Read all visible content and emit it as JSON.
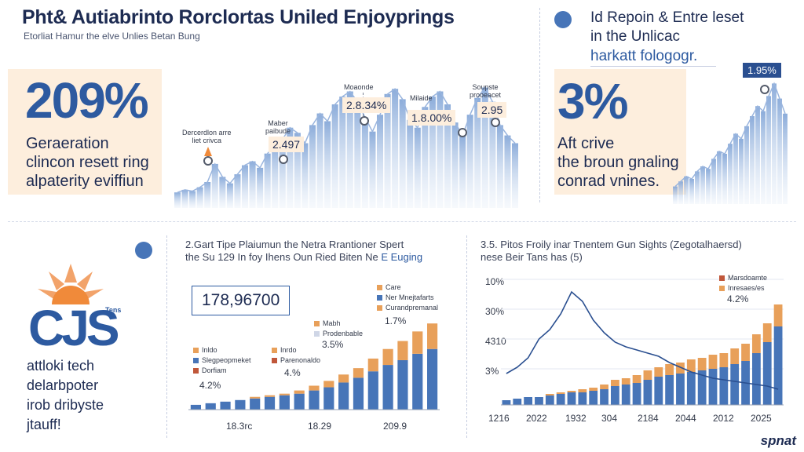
{
  "header": {
    "title": "Pht& Autiabrinto Rorclortas Uniled Enjoyprings",
    "subtitle": "Etorliat Hamur the elve Unlies Betan Bung"
  },
  "left_panel": {
    "percent": "209%",
    "lines": [
      "Geraeration",
      "clincon resett ring",
      "alpaterity eviffiun"
    ]
  },
  "right_panel": {
    "head_lines": [
      "Id Repoin & Entre leset",
      "in the Unlicac"
    ],
    "sub": "harkatt fologogr.",
    "percent": "3%",
    "lines": [
      "Aft crive",
      "the broun gnaling",
      "conrad vnines."
    ],
    "badge": "1.95%"
  },
  "top_callouts": [
    {
      "label": "Dercerdlon arre\nliet crivca",
      "value": ""
    },
    {
      "label": "Maber\npaibude",
      "value": "2.497"
    },
    {
      "label": "Moaonde\n",
      "value": "2.8.34%"
    },
    {
      "label": "Milaide",
      "value": "1.8.00%"
    },
    {
      "label": "Soupste\nprooeacet",
      "value": "2.95"
    }
  ],
  "middle_chart": {
    "title_lines": [
      "2.Gart Tipe Plaiumun the Netra Rrantioner Spert",
      "the Su 129 In foy Ihens Oun Ried Biten Ne"
    ],
    "title_highlight": "E Euging",
    "value_box": "178,96700",
    "legend_top": [
      "Care",
      "Ner Mnejtafarts",
      "Curandpremanal"
    ],
    "legend_bottom": [
      "Inldo",
      "Slegpeopmeket",
      "Dorfiam"
    ],
    "legend_mid": [
      "Inrdo",
      "Parenonaldo"
    ],
    "ann_top": [
      "Mabh",
      "Prodenbable"
    ],
    "ann_top_value": "1.7%",
    "ann_mid_value": "3.5%",
    "ann_low_value": "4.%",
    "ann_left_value": "4.2%",
    "x_labels": [
      "18.3rc",
      "18.29",
      "209.9"
    ]
  },
  "logo": {
    "text": "CJS",
    "small": "Tens",
    "lines": [
      "attloki tech",
      "delarbpoter",
      "irob dribyste",
      "jtauff!"
    ]
  },
  "right_chart": {
    "title_lines": [
      "3.5. Pitos Froily inar Tnentem Gun Sights (Zegotalhaersd)",
      "nese Beir Tans has (5)"
    ],
    "y_labels": [
      "10%",
      "30%",
      "4310",
      "3%"
    ],
    "x_labels": [
      "1216",
      "2022",
      "1932",
      "304",
      "2184",
      "2044",
      "2012",
      "2025"
    ],
    "legend": [
      "Marsdoamte",
      "Inresaes/es"
    ],
    "ann_value": "4.2%"
  },
  "brand": "spnat",
  "colors": {
    "accent": "#2d5aa0",
    "bar_blue": "#4775b8",
    "bar_orange": "#e8a05a",
    "highlight_bg": "#fdeedd"
  },
  "chart_data": [
    {
      "type": "area",
      "values": [
        12,
        14,
        13,
        16,
        20,
        34,
        24,
        19,
        26,
        33,
        36,
        31,
        42,
        49,
        53,
        62,
        58,
        50,
        64,
        73,
        67,
        80,
        86,
        90,
        82,
        70,
        59,
        72,
        88,
        92,
        84,
        68,
        62,
        78,
        86,
        90,
        80,
        66,
        56,
        72,
        85,
        93,
        82,
        64,
        56,
        50
      ],
      "title": "",
      "xlabel": "",
      "ylabel": "",
      "grid": false
    },
    {
      "type": "area",
      "values": [
        14,
        18,
        22,
        20,
        26,
        30,
        28,
        36,
        42,
        40,
        48,
        56,
        52,
        62,
        70,
        78,
        74,
        86,
        96,
        84,
        72
      ],
      "title": "",
      "xlabel": "",
      "ylabel": "",
      "grid": false
    },
    {
      "type": "bar",
      "stacked": true,
      "categories": [
        "1",
        "2",
        "3",
        "4",
        "5",
        "6",
        "7",
        "8",
        "9",
        "10",
        "11",
        "12",
        "13",
        "14",
        "15",
        "16",
        "17"
      ],
      "series": [
        {
          "name": "",
          "values": [
            3,
            4,
            5,
            6,
            7,
            8,
            9,
            10,
            12,
            14,
            17,
            20,
            24,
            28,
            31,
            35,
            38
          ]
        },
        {
          "name": "",
          "values": [
            0,
            0,
            0,
            0,
            1,
            1,
            1,
            2,
            3,
            4,
            5,
            6,
            8,
            10,
            12,
            14,
            16
          ]
        }
      ],
      "title": "",
      "xlabel": "",
      "ylabel": "",
      "ylim": [
        0,
        60
      ]
    },
    {
      "type": "bar",
      "stacked": true,
      "categories": [
        "1",
        "2",
        "3",
        "4",
        "5",
        "6",
        "7",
        "8",
        "9",
        "10",
        "11",
        "12",
        "13",
        "14",
        "15",
        "16",
        "17",
        "18",
        "19",
        "20",
        "21",
        "22",
        "23",
        "24",
        "25",
        "26"
      ],
      "series": [
        {
          "name": "",
          "values": [
            3,
            4,
            5,
            5,
            6,
            7,
            8,
            8,
            9,
            10,
            12,
            13,
            14,
            16,
            18,
            19,
            20,
            21,
            22,
            23,
            24,
            26,
            28,
            33,
            40,
            50
          ]
        },
        {
          "name": "",
          "values": [
            0,
            0,
            0,
            0,
            1,
            1,
            1,
            2,
            2,
            3,
            4,
            4,
            5,
            6,
            6,
            7,
            7,
            8,
            8,
            9,
            9,
            10,
            11,
            12,
            12,
            14
          ]
        }
      ],
      "line": [
        20,
        24,
        30,
        42,
        48,
        58,
        72,
        66,
        54,
        46,
        40,
        37,
        35,
        33,
        31,
        27,
        24,
        21,
        19,
        17,
        16,
        15,
        14,
        13,
        12,
        10
      ],
      "title": "",
      "xlabel": "",
      "ylabel": "",
      "ylim": [
        0,
        80
      ]
    }
  ]
}
